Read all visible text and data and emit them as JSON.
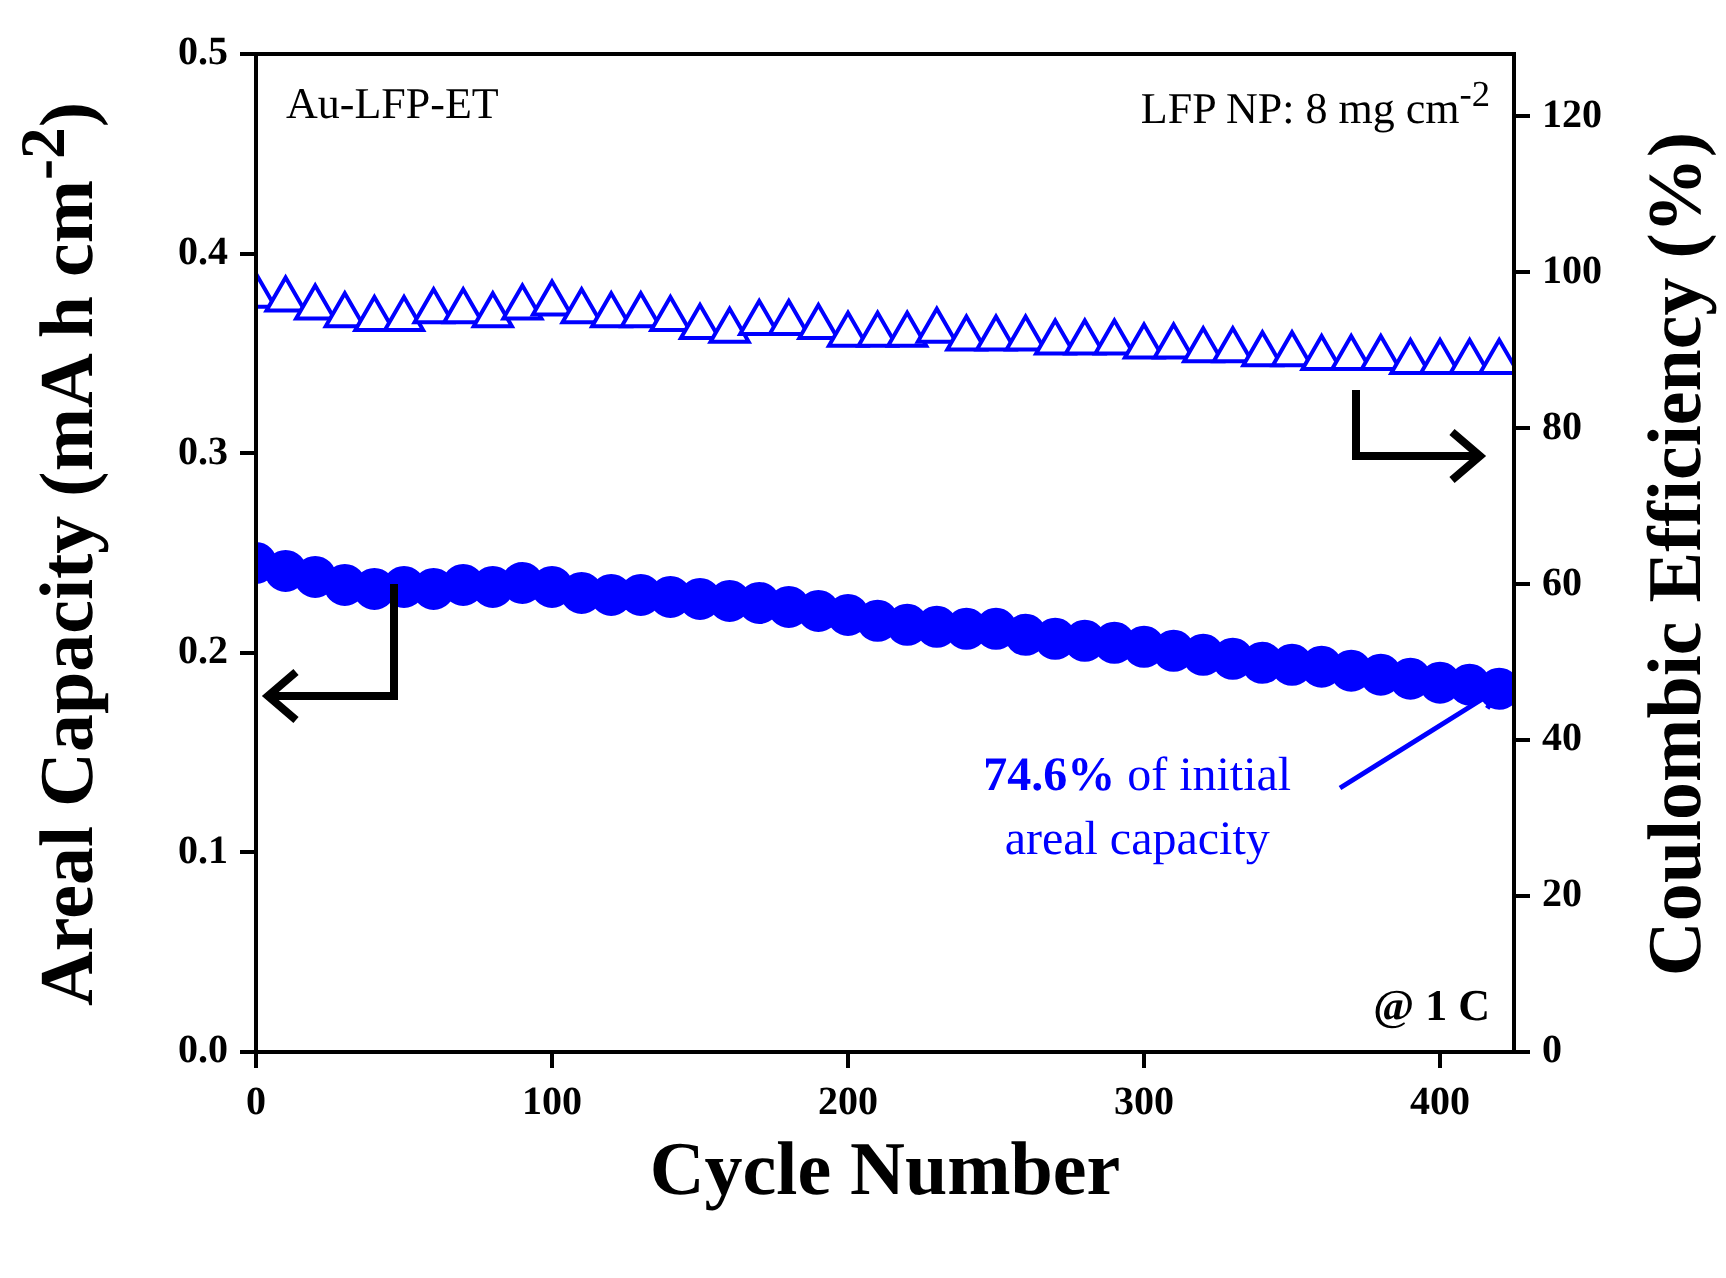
{
  "chart_data": {
    "type": "scatter",
    "xlabel": "Cycle Number",
    "ylabel": "Areal Capacity (mA h cm$^{-2}$)",
    "y2label": "Coulombic Efficiency (%)",
    "x": [
      0,
      10,
      20,
      30,
      40,
      50,
      60,
      70,
      80,
      90,
      100,
      110,
      120,
      130,
      140,
      150,
      160,
      170,
      180,
      190,
      200,
      210,
      220,
      230,
      240,
      250,
      260,
      270,
      280,
      290,
      300,
      310,
      320,
      330,
      340,
      350,
      360,
      370,
      380,
      390,
      400,
      410,
      420
    ],
    "series": [
      {
        "color": "#0000ff",
        "marker": "circle",
        "values": [
          0.245,
          0.241,
          0.238,
          0.234,
          0.232,
          0.233,
          0.232,
          0.234,
          0.233,
          0.235,
          0.233,
          0.23,
          0.229,
          0.229,
          0.228,
          0.227,
          0.226,
          0.225,
          0.223,
          0.221,
          0.219,
          0.216,
          0.214,
          0.213,
          0.212,
          0.212,
          0.209,
          0.207,
          0.206,
          0.205,
          0.203,
          0.201,
          0.199,
          0.197,
          0.195,
          0.194,
          0.193,
          0.191,
          0.189,
          0.187,
          0.185,
          0.184,
          0.182
        ]
      },
      {
        "color": "#0000ff",
        "marker": "triangle",
        "axis": "y2",
        "values": [
          97,
          96.5,
          95.5,
          94.5,
          94,
          94,
          95,
          95,
          94.5,
          95.5,
          96,
          95,
          94.5,
          94.5,
          94,
          93,
          92.5,
          93.5,
          93.5,
          93,
          92,
          92,
          92,
          92.5,
          91.5,
          91.5,
          91.5,
          91,
          91,
          91,
          90.5,
          90.5,
          90,
          90,
          89.5,
          89.5,
          89,
          89,
          89,
          88.5,
          88.5,
          88.5,
          88.5
        ]
      }
    ],
    "xlim": [
      0,
      425
    ],
    "xticks": [
      0,
      100,
      200,
      300,
      400
    ],
    "ylim": [
      0,
      0.5
    ],
    "yticks": [
      {
        "value": 0,
        "label": "0.0"
      },
      0.1,
      0.2,
      0.3,
      0.4,
      0.5
    ],
    "y2lim": [
      0,
      128
    ],
    "y2ticks": [
      0,
      20,
      40,
      60,
      80,
      100,
      120
    ],
    "grid": false,
    "legend": false,
    "annotations": [
      "Au-LFP-ET",
      "LFP NP: 8 mg cm$^{-2}$",
      "@ 1 C",
      {
        "text": "74.6% of initial areal capacity",
        "x": 420,
        "y": 0.182
      }
    ]
  }
}
